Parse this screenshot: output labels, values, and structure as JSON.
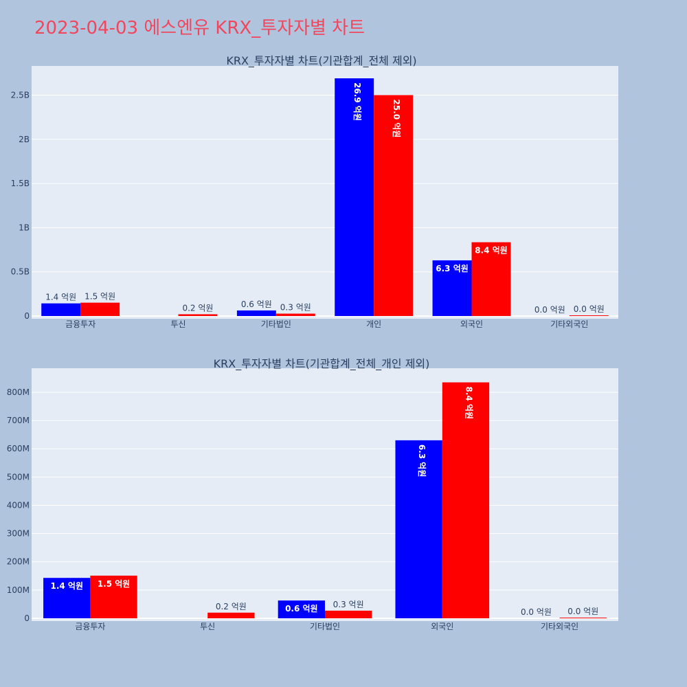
{
  "page_title": "2023-04-03 에스엔유 KRX_투자자별 차트",
  "colors": {
    "background": "#b0c4de",
    "plot_bg": "#e5ecf6",
    "title": "#f0475f",
    "buy": "#0000ff",
    "sell": "#ff0000",
    "text": "#2a3f5f"
  },
  "chart_data": [
    {
      "type": "bar",
      "title": "KRX_투자자별 차트(기관합계_전체 제외)",
      "categories": [
        "금융투자",
        "투신",
        "기타법인",
        "개인",
        "외국인",
        "기타외국인"
      ],
      "series": [
        {
          "color": "#0000ff",
          "values": [
            143000000,
            0,
            63000000,
            2690000000,
            630000000,
            0
          ],
          "labels": [
            "1.4 억원",
            "",
            "0.6 억원",
            "26.9 억원",
            "6.3 억원",
            "0.0 억원"
          ]
        },
        {
          "color": "#ff0000",
          "values": [
            151000000,
            20000000,
            27000000,
            2500000000,
            835000000,
            2000000
          ],
          "labels": [
            "1.5 억원",
            "0.2 억원",
            "0.3 억원",
            "25.0 억원",
            "8.4 억원",
            "0.0 억원"
          ]
        }
      ],
      "ylim": [
        0,
        2830000000
      ],
      "yticks": [
        0,
        500000000,
        1000000000,
        1500000000,
        2000000000,
        2500000000
      ],
      "ytick_labels": [
        "0",
        "0.5B",
        "1B",
        "1.5B",
        "2B",
        "2.5B"
      ],
      "grid": true,
      "legend": "none"
    },
    {
      "type": "bar",
      "title": "KRX_투자자별 차트(기관합계_전체_개인 제외)",
      "categories": [
        "금융투자",
        "투신",
        "기타법인",
        "외국인",
        "기타외국인"
      ],
      "series": [
        {
          "color": "#0000ff",
          "values": [
            143000000,
            0,
            63000000,
            630000000,
            0
          ],
          "labels": [
            "1.4 억원",
            "",
            "0.6 억원",
            "6.3 억원",
            "0.0 억원"
          ]
        },
        {
          "color": "#ff0000",
          "values": [
            151000000,
            20000000,
            27000000,
            835000000,
            2000000
          ],
          "labels": [
            "1.5 억원",
            "0.2 억원",
            "0.3 억원",
            "8.4 억원",
            "0.0 억원"
          ]
        }
      ],
      "ylim": [
        0,
        885000000
      ],
      "yticks": [
        0,
        100000000,
        200000000,
        300000000,
        400000000,
        500000000,
        600000000,
        700000000,
        800000000
      ],
      "ytick_labels": [
        "0",
        "100M",
        "200M",
        "300M",
        "400M",
        "500M",
        "600M",
        "700M",
        "800M"
      ],
      "grid": true,
      "legend": "none"
    }
  ]
}
